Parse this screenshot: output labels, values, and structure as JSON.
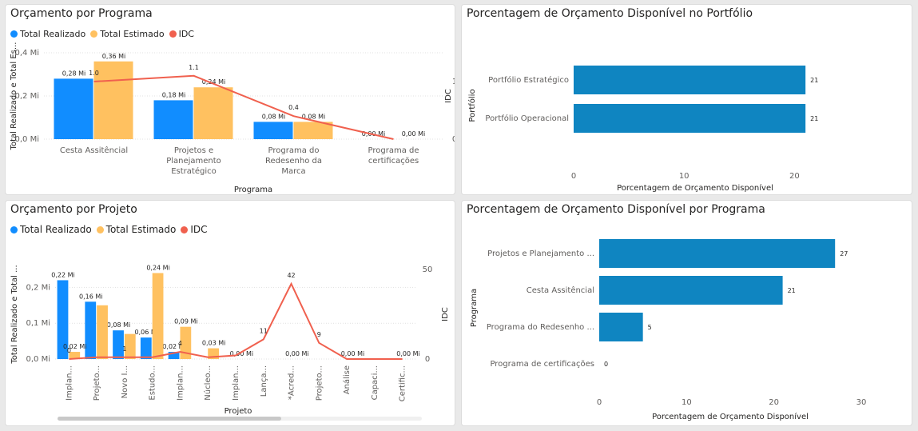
{
  "colors": {
    "realizado": "#118dff",
    "estimado": "#ffc160",
    "idc": "#f0604e",
    "portfolio_bar": "#0f85c1",
    "grid": "#e1e1e1"
  },
  "panel1": {
    "title": "Orçamento por Programa",
    "legend": [
      "Total Realizado",
      "Total Estimado",
      "IDC"
    ],
    "chart_data": {
      "type": "bar",
      "categories": [
        "Cesta Assitêncial",
        "Projetos e Planejamento Estratégico",
        "Programa do Redesenho da Marca",
        "Programa de certificações"
      ],
      "category_lines": [
        [
          "Cesta Assitêncial"
        ],
        [
          "Projetos e",
          "Planejamento",
          "Estratégico"
        ],
        [
          "Programa do",
          "Redesenho da",
          "Marca"
        ],
        [
          "Programa de",
          "certificações"
        ]
      ],
      "series": [
        {
          "name": "Total Realizado",
          "values": [
            0.28,
            0.18,
            0.08,
            0.0
          ],
          "labels": [
            "0,28 Mi",
            "0,18 Mi",
            "0,08 Mi",
            "0,00 Mi"
          ]
        },
        {
          "name": "Total Estimado",
          "values": [
            0.36,
            0.24,
            0.08,
            0.0
          ],
          "labels": [
            "0,36 Mi",
            "0,24 Mi",
            "0,08 Mi",
            "0,00 Mi"
          ]
        }
      ],
      "line": {
        "name": "IDC",
        "values": [
          1.0,
          1.1,
          0.4,
          0.0
        ],
        "labels": [
          "1.0",
          "1.1",
          "0.4",
          ""
        ]
      },
      "ylabel": "Total Realizado e Total Es...",
      "y2label": "IDC",
      "xlabel": "Programa",
      "yticks": [
        "0,0 Mi",
        "0,2 Mi",
        "0,4 Mi"
      ],
      "y2ticks": [
        "0",
        "1"
      ],
      "ylim": [
        0,
        0.4
      ],
      "y2lim": [
        0,
        1.5
      ]
    }
  },
  "panel2": {
    "title": "Porcentagem de Orçamento Disponível no Portfólio",
    "chart_data": {
      "type": "bar",
      "orientation": "horizontal",
      "categories": [
        "Portfólio Estratégico",
        "Portfólio Operacional"
      ],
      "values": [
        21,
        21
      ],
      "labels": [
        "21",
        "21"
      ],
      "ylabel": "Portfólio",
      "xlabel": "Porcentagem de Orçamento Disponível",
      "xticks": [
        "0",
        "10",
        "20"
      ],
      "xlim": [
        0,
        22
      ]
    }
  },
  "panel3": {
    "title": "Orçamento por Projeto",
    "legend": [
      "Total Realizado",
      "Total Estimado",
      "IDC"
    ],
    "chart_data": {
      "type": "bar",
      "categories": [
        "Implan...",
        "Projeto...",
        "Novo I...",
        "Estudo...",
        "Implan...",
        "Núcleo...",
        "Implan...",
        "Lança...",
        "*Acred...",
        "Projeto...",
        "Análise",
        "Capaci...",
        "Certific..."
      ],
      "series": [
        {
          "name": "Total Realizado",
          "values": [
            0.22,
            0.16,
            0.08,
            0.06,
            0.02,
            0.0,
            0.0,
            0.0,
            0.0,
            0.0,
            0.0,
            0.0,
            0.0
          ],
          "labels": [
            "0,22 Mi",
            "0,16 Mi",
            "0,08 Mi",
            "0,06 Mi",
            "0,02 Mi",
            "",
            "",
            "",
            "",
            "",
            "",
            "",
            ""
          ]
        },
        {
          "name": "Total Estimado",
          "values": [
            0.02,
            0.15,
            0.07,
            0.24,
            0.09,
            0.03,
            0.0,
            0.0,
            0.0,
            0.0,
            0.0,
            0.0,
            0.0
          ],
          "labels": [
            "0,02 Mi",
            "",
            "",
            "0,24 Mi",
            "0,09 Mi",
            "0,03 Mi",
            "0,00 Mi",
            "",
            "0,00 Mi",
            "",
            "0,00 Mi",
            "",
            "0,00 Mi"
          ]
        }
      ],
      "line": {
        "name": "IDC",
        "values": [
          0,
          1,
          1,
          1,
          4,
          1,
          2,
          11,
          42,
          9,
          0,
          0,
          0
        ],
        "labels": [
          "0",
          "",
          "1",
          "",
          "4",
          "",
          "",
          "11",
          "42",
          "9",
          "",
          "",
          ""
        ]
      },
      "ylabel": "Total Realizado e Total ...",
      "y2label": "IDC",
      "xlabel": "Projeto",
      "yticks": [
        "0,0 Mi",
        "0,1 Mi",
        "0,2 Mi"
      ],
      "y2ticks": [
        "0",
        "50"
      ],
      "ylim": [
        0,
        0.25
      ],
      "y2lim": [
        0,
        50
      ]
    }
  },
  "panel4": {
    "title": "Porcentagem de Orçamento Disponível por Programa",
    "chart_data": {
      "type": "bar",
      "orientation": "horizontal",
      "categories": [
        "Projetos e Planejamento ...",
        "Cesta Assitêncial",
        "Programa do Redesenho ...",
        "Programa de certificações"
      ],
      "values": [
        27,
        21,
        5,
        0
      ],
      "labels": [
        "27",
        "21",
        "5",
        "0"
      ],
      "ylabel": "Programa",
      "xlabel": "Porcentagem de Orçamento Disponível",
      "xticks": [
        "0",
        "10",
        "20",
        "30"
      ],
      "xlim": [
        0,
        30
      ]
    }
  }
}
